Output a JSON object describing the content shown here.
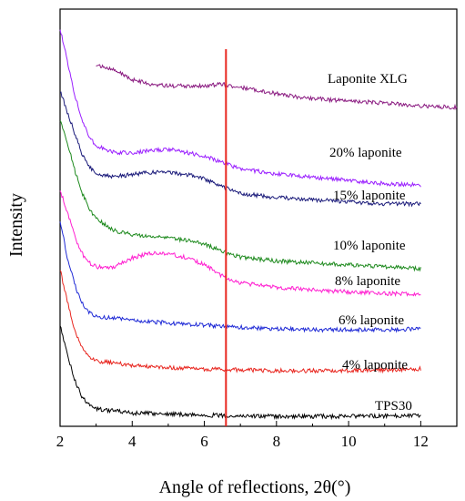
{
  "chart_data": {
    "type": "line",
    "title": "",
    "xlabel": "Angle of reflections, 2θ(°)",
    "ylabel": "Intensity",
    "xlim": [
      2,
      13
    ],
    "x_ticks": [
      2,
      4,
      6,
      8,
      10,
      12
    ],
    "y_ticks_shown": false,
    "grid": false,
    "legend": "none (labels placed beside each curve)",
    "annotations": [
      {
        "type": "vertical-line",
        "x": 6.6,
        "color": "#e8261f"
      }
    ],
    "series": [
      {
        "name": "TPS30",
        "color": "#000000",
        "x": [
          2.0,
          2.2,
          2.4,
          2.6,
          2.8,
          3.0,
          3.5,
          4.0,
          5.0,
          6.0,
          7.0,
          8.0,
          9.0,
          10.0,
          11.0,
          12.0
        ],
        "value": [
          2.2,
          1.5,
          0.9,
          0.5,
          0.3,
          0.2,
          0.15,
          0.1,
          0.08,
          0.05,
          0.03,
          0.02,
          0.02,
          0.02,
          0.03,
          0.05
        ]
      },
      {
        "name": "4% laponite",
        "color": "#e8261f",
        "x": [
          2.0,
          2.2,
          2.4,
          2.6,
          2.8,
          3.0,
          3.5,
          4.0,
          5.0,
          6.0,
          7.0,
          8.0,
          9.0,
          10.0,
          11.0,
          12.0
        ],
        "value": [
          2.4,
          1.7,
          1.1,
          0.7,
          0.5,
          0.4,
          0.35,
          0.3,
          0.25,
          0.22,
          0.2,
          0.18,
          0.18,
          0.18,
          0.2,
          0.22
        ]
      },
      {
        "name": "6% laponite",
        "color": "#1f2ad6",
        "x": [
          2.0,
          2.2,
          2.4,
          2.6,
          2.8,
          3.0,
          3.5,
          4.0,
          5.0,
          6.0,
          7.0,
          8.0,
          9.0,
          10.0,
          11.0,
          12.0
        ],
        "value": [
          2.6,
          1.8,
          1.2,
          0.8,
          0.6,
          0.5,
          0.45,
          0.4,
          0.35,
          0.3,
          0.25,
          0.22,
          0.2,
          0.2,
          0.2,
          0.22
        ]
      },
      {
        "name": "8% laponite",
        "color": "#ff1fd0",
        "x": [
          2.0,
          2.2,
          2.4,
          2.6,
          2.8,
          3.0,
          3.5,
          4.0,
          4.5,
          5.0,
          5.5,
          6.0,
          6.5,
          7.0,
          8.0,
          9.0,
          10.0,
          11.0,
          12.0
        ],
        "value": [
          2.4,
          1.9,
          1.4,
          1.0,
          0.8,
          0.7,
          0.7,
          0.9,
          1.0,
          1.0,
          0.9,
          0.75,
          0.5,
          0.35,
          0.25,
          0.2,
          0.15,
          0.12,
          0.1
        ]
      },
      {
        "name": "10% laponite",
        "color": "#1e8a1e",
        "x": [
          2.0,
          2.2,
          2.4,
          2.6,
          2.8,
          3.0,
          3.5,
          4.0,
          4.5,
          5.0,
          5.5,
          6.0,
          6.5,
          7.0,
          8.0,
          9.0,
          10.0,
          11.0,
          12.0
        ],
        "value": [
          3.9,
          3.3,
          2.6,
          2.0,
          1.6,
          1.3,
          1.0,
          0.9,
          0.85,
          0.8,
          0.75,
          0.65,
          0.45,
          0.3,
          0.2,
          0.15,
          0.1,
          0.05,
          0.0
        ]
      },
      {
        "name": "15% laponite",
        "color": "#1a1a7a",
        "x": [
          2.0,
          2.2,
          2.4,
          2.6,
          2.8,
          3.0,
          3.5,
          4.0,
          4.5,
          5.0,
          5.5,
          6.0,
          6.5,
          7.0,
          8.0,
          9.0,
          10.0,
          11.0,
          12.0
        ],
        "value": [
          2.9,
          2.4,
          1.9,
          1.4,
          1.1,
          0.9,
          0.85,
          0.9,
          0.95,
          0.95,
          0.9,
          0.8,
          0.6,
          0.45,
          0.35,
          0.3,
          0.25,
          0.2,
          0.2
        ]
      },
      {
        "name": "20% laponite",
        "color": "#9a1fff",
        "x": [
          2.0,
          2.2,
          2.4,
          2.6,
          2.8,
          3.0,
          3.5,
          4.0,
          4.5,
          5.0,
          5.5,
          6.0,
          6.5,
          7.0,
          8.0,
          9.0,
          10.0,
          11.0,
          12.0
        ],
        "value": [
          4.9,
          3.9,
          2.9,
          2.1,
          1.6,
          1.3,
          1.1,
          1.1,
          1.15,
          1.2,
          1.1,
          1.0,
          0.8,
          0.6,
          0.45,
          0.35,
          0.25,
          0.15,
          0.1
        ]
      },
      {
        "name": "Laponite XLG",
        "color": "#8a1a80",
        "x": [
          3.0,
          3.5,
          4.0,
          4.5,
          5.0,
          5.5,
          6.0,
          6.5,
          7.0,
          7.5,
          8.0,
          8.5,
          9.0,
          10.0,
          11.0,
          12.0,
          13.0
        ],
        "value": [
          1.4,
          1.2,
          0.9,
          0.75,
          0.7,
          0.7,
          0.7,
          0.75,
          0.65,
          0.55,
          0.45,
          0.35,
          0.3,
          0.2,
          0.15,
          0.05,
          0.0
        ]
      }
    ]
  }
}
